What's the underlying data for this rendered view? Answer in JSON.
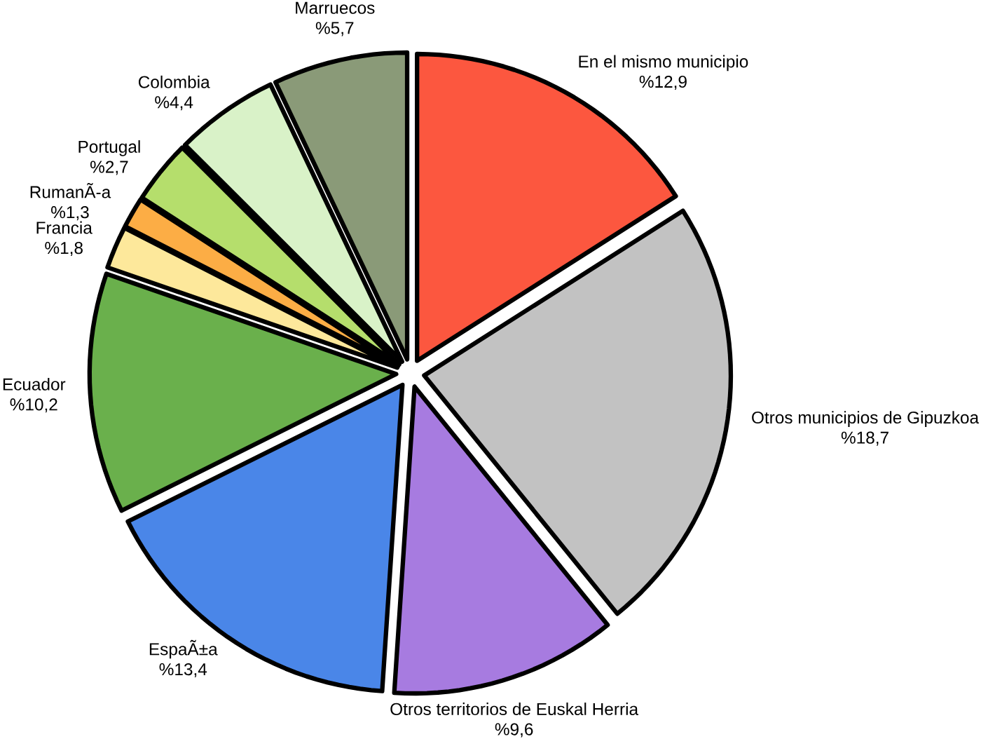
{
  "chart_data": {
    "type": "pie",
    "categories": [
      "En el mismo municipio",
      "Otros municipios de Gipuzkoa",
      "Otros territorios de Euskal Herria",
      "EspaÃ±a",
      "Ecuador",
      "Francia",
      "RumanÃ-a",
      "Portugal",
      "Colombia",
      "Marruecos"
    ],
    "values": [
      12.9,
      18.7,
      9.6,
      13.4,
      10.2,
      1.8,
      1.3,
      2.7,
      4.4,
      5.7
    ],
    "value_labels": [
      "%12,9",
      "%18,7",
      "%9,6",
      "%13,4",
      "%10,2",
      "%1,8",
      "%1,3",
      "%2,7",
      "%4,4",
      "%5,7"
    ],
    "colors": [
      "#fc573f",
      "#c2c2c2",
      "#a77be0",
      "#4a86e8",
      "#6ab04c",
      "#fde89b",
      "#fcad45",
      "#b5de6c",
      "#d9f2c8",
      "#8a9a78"
    ]
  }
}
